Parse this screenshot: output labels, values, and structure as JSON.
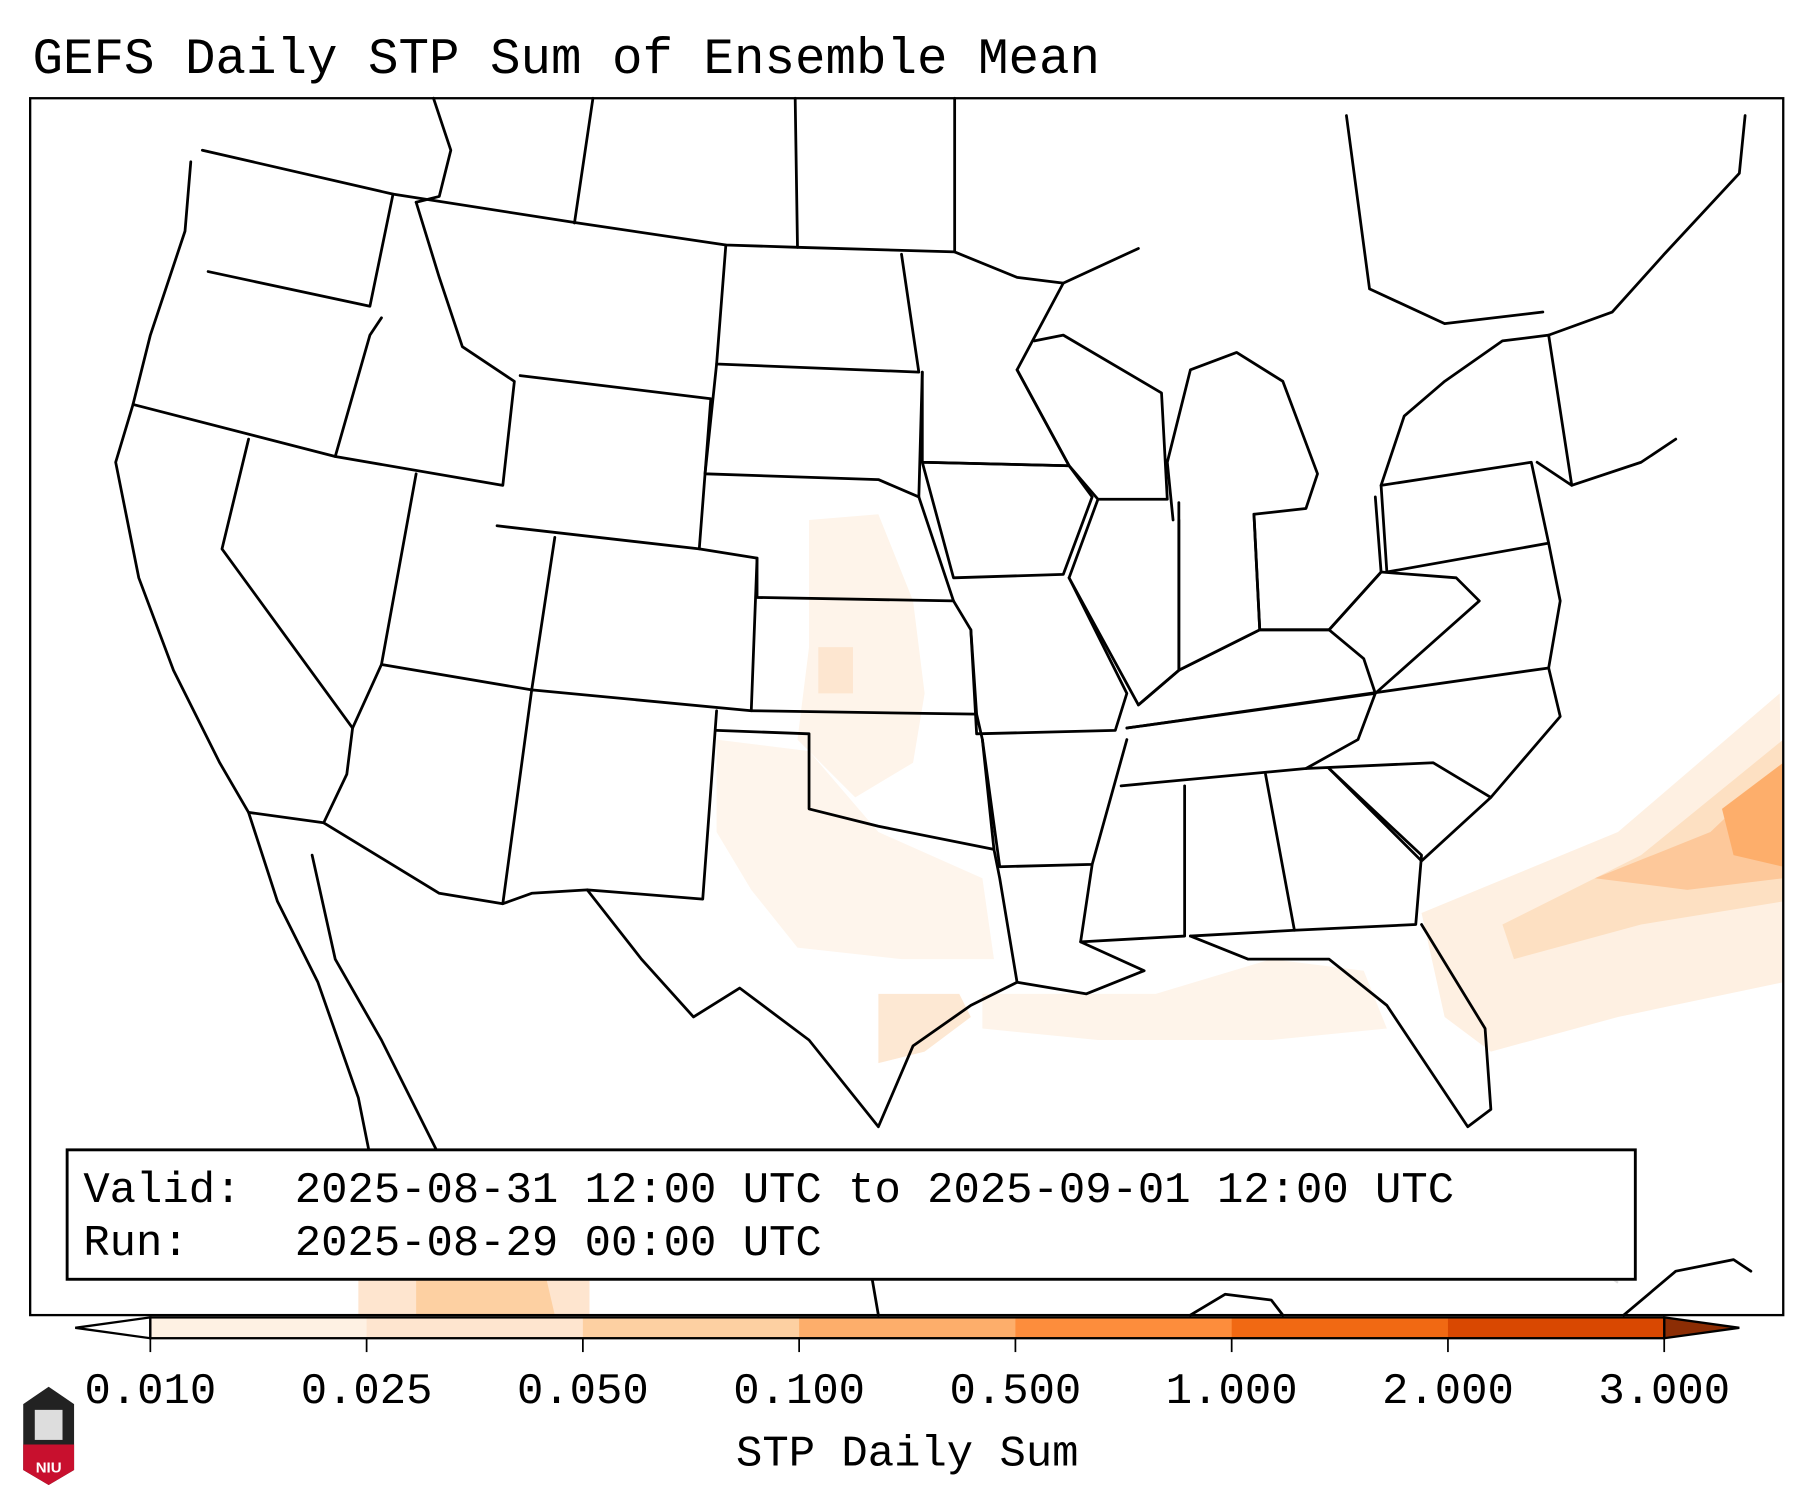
{
  "title": "GEFS Daily STP Sum of Ensemble Mean",
  "info_box": {
    "valid_label": "Valid:",
    "valid_value": "2025-08-31 12:00 UTC to 2025-09-01 12:00 UTC",
    "run_label": "Run:",
    "run_value": "2025-08-29 00:00 UTC"
  },
  "colorbar": {
    "label": "STP Daily Sum",
    "ticks": [
      "0.010",
      "0.025",
      "0.050",
      "0.100",
      "0.500",
      "1.000",
      "2.000",
      "3.000"
    ],
    "colors": [
      "#fef1e3",
      "#fee5cf",
      "#fdd0a2",
      "#fdae6b",
      "#fd8d3c",
      "#f16913",
      "#d94801"
    ],
    "under_color": "#ffffff",
    "over_color": "#8c2d04"
  },
  "logo": {
    "text": "NIU",
    "color": "#c8102e"
  }
}
